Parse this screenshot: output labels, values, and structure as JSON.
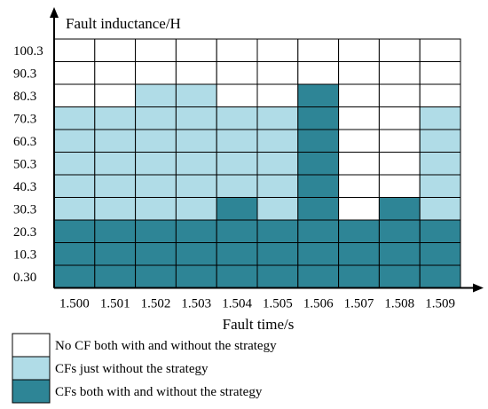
{
  "chart_data": {
    "type": "heatmap",
    "xlabel": "Fault time/s",
    "ylabel": "Fault inductance/H",
    "x_categories": [
      "1.500",
      "1.501",
      "1.502",
      "1.503",
      "1.504",
      "1.505",
      "1.506",
      "1.507",
      "1.508",
      "1.509"
    ],
    "y_categories": [
      "0.30",
      "10.3",
      "20.3",
      "30.3",
      "40.3",
      "50.3",
      "60.3",
      "70.3",
      "80.3",
      "90.3",
      "100.3"
    ],
    "status_colors": {
      "none": "#ffffff",
      "without_only": "#b0dce7",
      "both": "#2e8596"
    },
    "legend": [
      {
        "status": "none",
        "label": "No CF both with and without the strategy"
      },
      {
        "status": "without_only",
        "label": "CFs just without the strategy"
      },
      {
        "status": "both",
        "label": "CFs both with and without the strategy"
      }
    ],
    "columns": [
      {
        "x": "1.500",
        "cells": [
          "both",
          "both",
          "both",
          "without_only",
          "without_only",
          "without_only",
          "without_only",
          "without_only",
          "none",
          "none",
          "none"
        ]
      },
      {
        "x": "1.501",
        "cells": [
          "both",
          "both",
          "both",
          "without_only",
          "without_only",
          "without_only",
          "without_only",
          "without_only",
          "none",
          "none",
          "none"
        ]
      },
      {
        "x": "1.502",
        "cells": [
          "both",
          "both",
          "both",
          "without_only",
          "without_only",
          "without_only",
          "without_only",
          "without_only",
          "without_only",
          "none",
          "none"
        ]
      },
      {
        "x": "1.503",
        "cells": [
          "both",
          "both",
          "both",
          "without_only",
          "without_only",
          "without_only",
          "without_only",
          "without_only",
          "without_only",
          "none",
          "none"
        ]
      },
      {
        "x": "1.504",
        "cells": [
          "both",
          "both",
          "both",
          "both",
          "without_only",
          "without_only",
          "without_only",
          "without_only",
          "none",
          "none",
          "none"
        ]
      },
      {
        "x": "1.505",
        "cells": [
          "both",
          "both",
          "both",
          "without_only",
          "without_only",
          "without_only",
          "without_only",
          "without_only",
          "none",
          "none",
          "none"
        ]
      },
      {
        "x": "1.506",
        "cells": [
          "both",
          "both",
          "both",
          "both",
          "both",
          "both",
          "both",
          "both",
          "both",
          "none",
          "none"
        ]
      },
      {
        "x": "1.507",
        "cells": [
          "both",
          "both",
          "both",
          "none",
          "none",
          "none",
          "none",
          "none",
          "none",
          "none",
          "none"
        ]
      },
      {
        "x": "1.508",
        "cells": [
          "both",
          "both",
          "both",
          "both",
          "none",
          "none",
          "none",
          "none",
          "none",
          "none",
          "none"
        ]
      },
      {
        "x": "1.509",
        "cells": [
          "both",
          "both",
          "both",
          "without_only",
          "without_only",
          "without_only",
          "without_only",
          "without_only",
          "none",
          "none",
          "none"
        ]
      }
    ]
  }
}
